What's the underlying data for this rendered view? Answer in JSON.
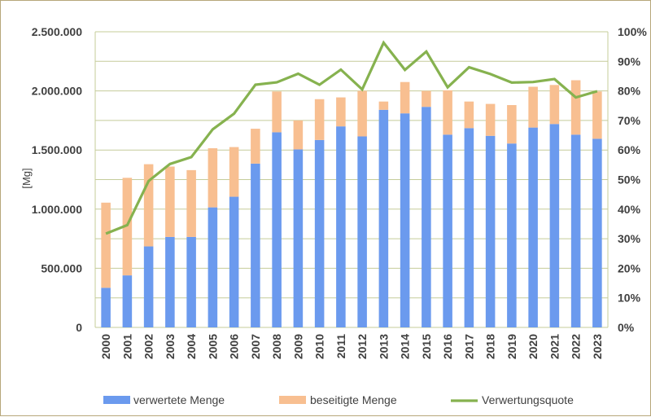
{
  "chart_data": {
    "type": "bar",
    "stacked": true,
    "title": "",
    "categories": [
      "2000",
      "2001",
      "2002",
      "2003",
      "2004",
      "2005",
      "2006",
      "2007",
      "2008",
      "2009",
      "2010",
      "2011",
      "2012",
      "2013",
      "2014",
      "2015",
      "2016",
      "2017",
      "2018",
      "2019",
      "2020",
      "2021",
      "2022",
      "2023"
    ],
    "series": [
      {
        "name": "verwertete Menge",
        "type": "bar",
        "axis": "left",
        "color": "#6b9aee",
        "values": [
          335000,
          440000,
          685000,
          765000,
          765000,
          1015000,
          1105000,
          1385000,
          1650000,
          1505000,
          1585000,
          1700000,
          1615000,
          1840000,
          1810000,
          1865000,
          1630000,
          1685000,
          1620000,
          1555000,
          1690000,
          1720000,
          1630000,
          1595000
        ]
      },
      {
        "name": "beseitigte Menge",
        "type": "bar",
        "axis": "left",
        "color": "#f8bf91",
        "values": [
          720000,
          825000,
          695000,
          595000,
          565000,
          500000,
          420000,
          295000,
          345000,
          245000,
          345000,
          245000,
          385000,
          70000,
          265000,
          135000,
          375000,
          225000,
          270000,
          325000,
          345000,
          330000,
          460000,
          400000
        ]
      },
      {
        "name": "Verwertungsquote",
        "type": "line",
        "axis": "right",
        "color": "#86b24f",
        "values": [
          31.7,
          34.6,
          49.5,
          55.3,
          57.6,
          67.0,
          72.3,
          82.1,
          82.9,
          85.8,
          82.1,
          87.2,
          80.5,
          96.3,
          87.1,
          93.3,
          81.2,
          88.0,
          85.7,
          82.8,
          83.0,
          84.0,
          77.8,
          79.9
        ]
      }
    ],
    "yaxis_left": {
      "label": "[Mg]",
      "ylim": [
        0,
        2500000
      ],
      "ticks": [
        0,
        500000,
        1000000,
        1500000,
        2000000,
        2500000
      ],
      "tick_labels": [
        "0",
        "500.000",
        "1.000.000",
        "1.500.000",
        "2.000.000",
        "2.500.000"
      ]
    },
    "yaxis_right": {
      "label": "",
      "ylim": [
        0,
        100
      ],
      "ticks": [
        0,
        10,
        20,
        30,
        40,
        50,
        60,
        70,
        80,
        90,
        100
      ],
      "tick_labels": [
        "0%",
        "10%",
        "20%",
        "30%",
        "40%",
        "50%",
        "60%",
        "70%",
        "80%",
        "90%",
        "100%"
      ]
    },
    "xlabel": "",
    "grid": true,
    "grid_color": "#c5cc9a",
    "legend_position": "bottom"
  }
}
